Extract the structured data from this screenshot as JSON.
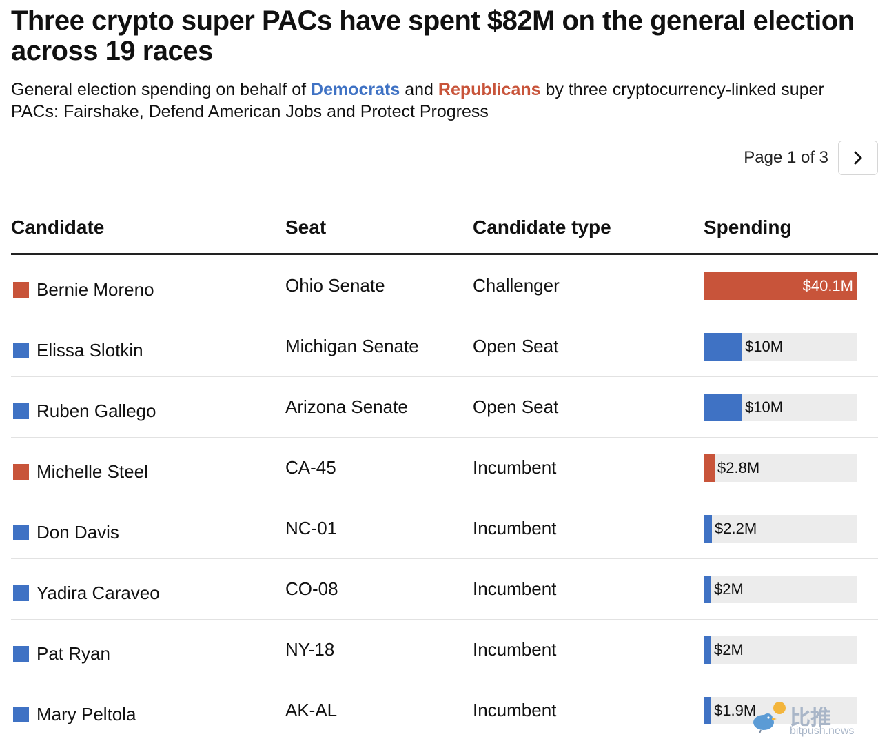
{
  "title": "Three crypto super PACs have spent $82M on the general election across 19 races",
  "subtitle": {
    "prefix": "General election spending on behalf of ",
    "dem": "Democrats",
    "mid": " and ",
    "rep": "Republicans",
    "suffix": " by three cryptocurrency-linked super PACs: Fairshake, Defend American Jobs and Protect Progress"
  },
  "pagination": {
    "label": "Page 1 of 3",
    "next_icon": "chevron-right-icon"
  },
  "colors": {
    "democrat": "#3f72c4",
    "republican": "#c8543a",
    "track": "#ececec"
  },
  "watermark": {
    "brand": "比推",
    "url": "bitpush.news",
    "icon": "bird-logo-icon"
  },
  "chart_data": {
    "type": "table",
    "title": "Three crypto super PACs have spent $82M on the general election across 19 races",
    "columns": [
      "Candidate",
      "Seat",
      "Candidate type",
      "Spending"
    ],
    "spending_max": 40.1,
    "spending_unit": "$M",
    "rows": [
      {
        "candidate": "Bernie Moreno",
        "party": "republican",
        "seat": "Ohio Senate",
        "type": "Challenger",
        "spending": 40.1,
        "label": "$40.1M"
      },
      {
        "candidate": "Elissa Slotkin",
        "party": "democrat",
        "seat": "Michigan Senate",
        "type": "Open Seat",
        "spending": 10,
        "label": "$10M"
      },
      {
        "candidate": "Ruben Gallego",
        "party": "democrat",
        "seat": "Arizona Senate",
        "type": "Open Seat",
        "spending": 10,
        "label": "$10M"
      },
      {
        "candidate": "Michelle Steel",
        "party": "republican",
        "seat": "CA-45",
        "type": "Incumbent",
        "spending": 2.8,
        "label": "$2.8M"
      },
      {
        "candidate": "Don Davis",
        "party": "democrat",
        "seat": "NC-01",
        "type": "Incumbent",
        "spending": 2.2,
        "label": "$2.2M"
      },
      {
        "candidate": "Yadira Caraveo",
        "party": "democrat",
        "seat": "CO-08",
        "type": "Incumbent",
        "spending": 2,
        "label": "$2M"
      },
      {
        "candidate": "Pat Ryan",
        "party": "democrat",
        "seat": "NY-18",
        "type": "Incumbent",
        "spending": 2,
        "label": "$2M"
      },
      {
        "candidate": "Mary Peltola",
        "party": "democrat",
        "seat": "AK-AL",
        "type": "Incumbent",
        "spending": 1.9,
        "label": "$1.9M"
      }
    ]
  }
}
